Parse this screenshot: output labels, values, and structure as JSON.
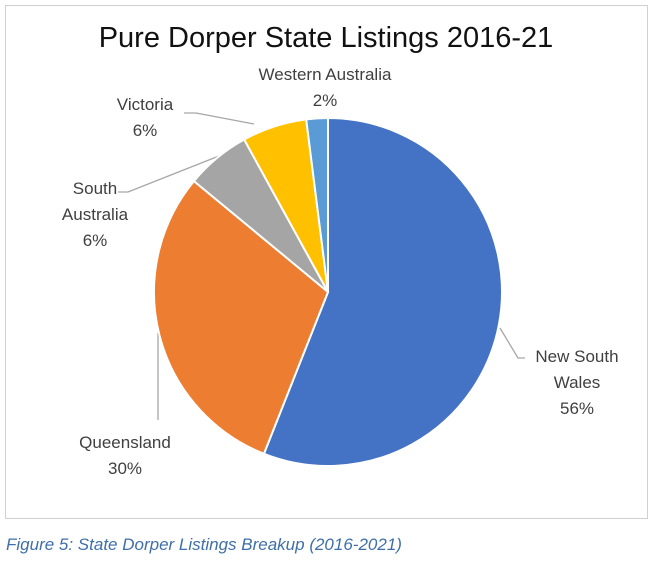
{
  "chart_data": {
    "type": "pie",
    "title": "Pure Dorper State Listings 2016-21",
    "categories": [
      "New South Wales",
      "Queensland",
      "South Australia",
      "Victoria",
      "Western Australia"
    ],
    "values": [
      56,
      30,
      6,
      6,
      2
    ],
    "value_labels": [
      "56%",
      "30%",
      "6%",
      "6%",
      "2%"
    ],
    "colors": [
      "#4472c4",
      "#ed7d31",
      "#a5a5a5",
      "#ffc000",
      "#5b9bd5"
    ]
  },
  "caption": "Figure 5: State Dorper Listings Breakup (2016-2021)"
}
